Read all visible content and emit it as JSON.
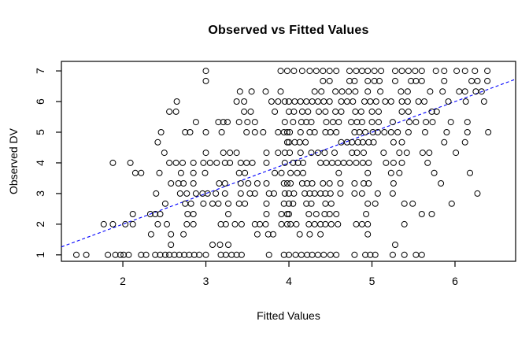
{
  "title": "Observed vs Fitted Values",
  "x_axis": {
    "label": "Fitted Values",
    "ticks": [
      "2",
      "3",
      "4",
      "5",
      "6"
    ]
  },
  "y_axis": {
    "label": "Observed DV",
    "ticks": [
      "1",
      "2",
      "3",
      "4",
      "5",
      "6",
      "7"
    ]
  },
  "colors": {
    "points": "#000000",
    "reference_line": "#0000ff",
    "box": "#000000",
    "background": "#ffffff"
  },
  "chart_data": {
    "type": "scatter",
    "title": "Observed vs Fitted Values",
    "xlabel": "Fitted Values",
    "ylabel": "Observed DV",
    "xlim": [
      1.26,
      6.73
    ],
    "ylim": [
      0.79,
      7.31
    ],
    "x_ticks": [
      2,
      3,
      4,
      5,
      6
    ],
    "y_ticks": [
      1,
      2,
      3,
      4,
      5,
      6,
      7
    ],
    "grid": false,
    "legend": null,
    "marker": "open-circle",
    "reference_line": {
      "name": "identity y = x",
      "from": [
        1.26,
        1.26
      ],
      "to": [
        6.73,
        6.73
      ],
      "color": "#0000ff",
      "style": "dashed"
    },
    "rows": [
      {
        "y": 7.0,
        "x": [
          3.0,
          3.9,
          3.98,
          4.06,
          4.16,
          4.25,
          4.33,
          4.41,
          4.49,
          4.57,
          4.73,
          4.81,
          4.88,
          4.95,
          5.03,
          5.11,
          5.28,
          5.36,
          5.44,
          5.52,
          5.6,
          5.77,
          5.87,
          6.02,
          6.12,
          6.24,
          6.39
        ]
      },
      {
        "y": 6.67,
        "x": [
          3.0,
          4.41,
          4.49,
          4.73,
          4.79,
          4.95,
          5.03,
          5.09,
          5.28,
          5.47,
          5.53,
          5.6,
          5.87,
          6.2,
          6.27,
          6.39
        ]
      },
      {
        "y": 6.33,
        "x": [
          3.41,
          3.55,
          3.72,
          3.9,
          4.31,
          4.39,
          4.56,
          4.64,
          4.72,
          4.8,
          4.95,
          5.1,
          5.35,
          5.43,
          5.7,
          5.85,
          6.05,
          6.12,
          6.25,
          6.32
        ]
      },
      {
        "y": 6.0,
        "x": [
          2.65,
          3.37,
          3.46,
          3.79,
          3.87,
          3.95,
          4.0,
          4.07,
          4.14,
          4.21,
          4.28,
          4.35,
          4.42,
          4.49,
          4.63,
          4.7,
          4.77,
          4.91,
          4.98,
          5.05,
          5.16,
          5.23,
          5.36,
          5.43,
          5.56,
          5.63,
          5.92,
          6.13,
          6.35
        ]
      },
      {
        "y": 5.67,
        "x": [
          2.56,
          2.64,
          3.46,
          3.54,
          3.83,
          4.0,
          4.06,
          4.16,
          4.23,
          4.36,
          4.44,
          4.56,
          4.63,
          4.8,
          4.87,
          5.0,
          5.08,
          5.36,
          5.44,
          5.72,
          5.78
        ]
      },
      {
        "y": 5.33,
        "x": [
          2.88,
          3.15,
          3.21,
          3.26,
          3.4,
          3.5,
          3.59,
          3.95,
          4.05,
          4.15,
          4.21,
          4.27,
          4.45,
          4.53,
          4.6,
          4.75,
          4.82,
          4.88,
          5.0,
          5.08,
          5.25,
          5.45,
          5.53,
          5.65,
          5.73,
          5.95,
          6.15
        ]
      },
      {
        "y": 5.0,
        "x": [
          2.46,
          2.75,
          2.81,
          3.0,
          3.19,
          3.49,
          3.59,
          3.69,
          3.87,
          3.94,
          3.98,
          4.01,
          4.14,
          4.25,
          4.31,
          4.44,
          4.5,
          4.57,
          4.79,
          4.85,
          4.92,
          5.01,
          5.07,
          5.15,
          5.23,
          5.31,
          5.44,
          5.64,
          5.9,
          6.15,
          6.4
        ]
      },
      {
        "y": 4.67,
        "x": [
          2.42,
          3.98,
          4.0,
          4.07,
          4.13,
          4.2,
          4.63,
          4.7,
          4.76,
          4.83,
          4.89,
          4.96,
          5.02,
          5.26,
          5.36,
          5.87,
          6.12
        ]
      },
      {
        "y": 4.33,
        "x": [
          2.5,
          3.0,
          3.21,
          3.29,
          3.37,
          3.73,
          3.87,
          3.95,
          4.01,
          4.14,
          4.27,
          4.35,
          4.43,
          4.55,
          4.76,
          4.82,
          4.9,
          5.14,
          5.33,
          5.42,
          5.61,
          5.69,
          6.01
        ]
      },
      {
        "y": 4.0,
        "x": [
          1.88,
          2.09,
          2.56,
          2.64,
          2.72,
          2.85,
          2.97,
          3.05,
          3.13,
          3.23,
          3.29,
          3.42,
          3.49,
          3.56,
          3.73,
          3.95,
          4.05,
          4.11,
          4.17,
          4.38,
          4.45,
          4.52,
          4.59,
          4.66,
          4.73,
          4.81,
          4.89,
          4.96,
          5.17,
          5.26,
          5.36,
          5.67
        ]
      },
      {
        "y": 3.67,
        "x": [
          2.15,
          2.22,
          2.44,
          2.7,
          2.85,
          2.99,
          3.4,
          3.47,
          3.83,
          3.91,
          4.02,
          4.1,
          4.17,
          4.6,
          4.95,
          5.23,
          5.33,
          5.75,
          6.18
        ]
      },
      {
        "y": 3.33,
        "x": [
          2.58,
          2.67,
          2.73,
          2.85,
          3.16,
          3.23,
          3.42,
          3.51,
          3.62,
          3.73,
          3.94,
          3.98,
          4.02,
          4.16,
          4.22,
          4.28,
          4.41,
          4.49,
          4.62,
          4.79,
          4.9,
          4.96,
          5.26,
          5.83
        ]
      },
      {
        "y": 3.0,
        "x": [
          2.4,
          2.69,
          2.77,
          2.88,
          2.96,
          3.02,
          3.12,
          3.23,
          3.42,
          3.53,
          3.59,
          3.76,
          3.82,
          3.95,
          4.0,
          4.06,
          4.19,
          4.25,
          4.31,
          4.38,
          4.44,
          4.5,
          4.62,
          4.79,
          4.88,
          5.07,
          5.25,
          6.27
        ]
      },
      {
        "y": 2.67,
        "x": [
          2.51,
          2.75,
          2.82,
          2.97,
          3.08,
          3.15,
          3.27,
          3.4,
          3.47,
          3.73,
          3.94,
          4.0,
          4.05,
          4.21,
          4.27,
          4.44,
          4.51,
          4.95,
          5.04,
          5.39,
          5.49,
          5.96
        ]
      },
      {
        "y": 2.33,
        "x": [
          2.12,
          2.33,
          2.39,
          2.45,
          2.78,
          2.85,
          3.27,
          3.73,
          3.91,
          3.98,
          4.0,
          4.24,
          4.33,
          4.43,
          4.49,
          4.57,
          4.93,
          5.6,
          5.72
        ]
      },
      {
        "y": 2.0,
        "x": [
          1.77,
          1.88,
          2.03,
          2.12,
          2.42,
          2.53,
          2.77,
          2.85,
          3.18,
          3.24,
          3.35,
          3.43,
          3.59,
          3.65,
          3.72,
          3.91,
          3.98,
          4.02,
          4.09,
          4.24,
          4.31,
          4.38,
          4.44,
          4.51,
          4.59,
          4.81,
          4.88,
          4.95,
          5.39
        ]
      },
      {
        "y": 1.67,
        "x": [
          2.34,
          2.58,
          2.73,
          3.62,
          3.75,
          3.81,
          4.13,
          4.25,
          4.38,
          4.95
        ]
      },
      {
        "y": 1.33,
        "x": [
          2.58,
          3.08,
          3.17,
          3.27,
          5.28
        ]
      },
      {
        "y": 1.0,
        "x": [
          1.44,
          1.56,
          1.82,
          1.91,
          1.97,
          2.01,
          2.07,
          2.22,
          2.28,
          2.39,
          2.45,
          2.51,
          2.56,
          2.62,
          2.68,
          2.74,
          2.8,
          2.86,
          2.92,
          3.0,
          3.18,
          3.24,
          3.31,
          3.37,
          3.43,
          3.76,
          3.94,
          4.0,
          4.08,
          4.15,
          4.22,
          4.28,
          4.35,
          4.42,
          4.5,
          4.57,
          4.79,
          4.92,
          4.98,
          5.04,
          5.25,
          5.39,
          5.53,
          5.6
        ]
      }
    ]
  }
}
